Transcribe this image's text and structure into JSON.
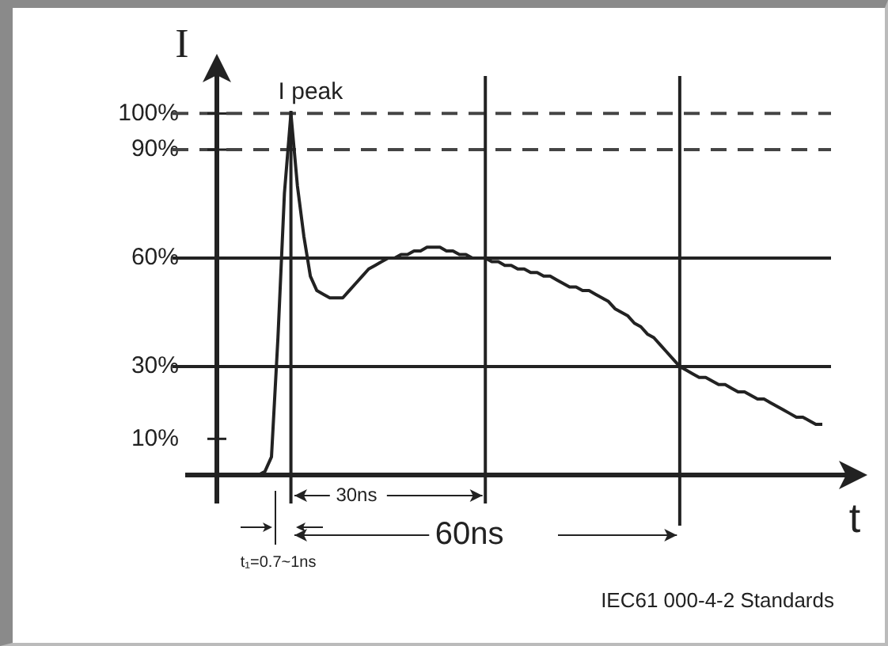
{
  "chart_data": {
    "type": "line",
    "xlabel": "t",
    "ylabel": "I",
    "categories": [
      null,
      null,
      null,
      null,
      null,
      null,
      null,
      null,
      null,
      null,
      null,
      null,
      null,
      null,
      null,
      null,
      null,
      null,
      null,
      null,
      null,
      null,
      null,
      null,
      null,
      null,
      null,
      null,
      null,
      null,
      null,
      null,
      null,
      null,
      null,
      null,
      null,
      null,
      null,
      null,
      null,
      null,
      null,
      null,
      null,
      null,
      null,
      null,
      null,
      null,
      null,
      null,
      null,
      null,
      null,
      null,
      null,
      null,
      null,
      null,
      null,
      null,
      null,
      null,
      null,
      null,
      null,
      null,
      null,
      null,
      null,
      null,
      null,
      null,
      null,
      null,
      null,
      null,
      null,
      null,
      null,
      null,
      null,
      null,
      null,
      null,
      null,
      null,
      null
    ],
    "series": [
      {
        "color": "#222222",
        "values": [
          0,
          0,
          1,
          5,
          38,
          78,
          100,
          80,
          66,
          55,
          51,
          50,
          49,
          49,
          49,
          51,
          53,
          55,
          57,
          58,
          59,
          60,
          60,
          61,
          61,
          62,
          62,
          63,
          63,
          63,
          62,
          62,
          61,
          61,
          60,
          60,
          60,
          59,
          59,
          58,
          58,
          57,
          57,
          56,
          56,
          55,
          55,
          54,
          53,
          52,
          52,
          51,
          51,
          50,
          49,
          48,
          46,
          45,
          44,
          42,
          41,
          39,
          38,
          36,
          34,
          32,
          30,
          29,
          28,
          27,
          27,
          26,
          25,
          25,
          24,
          23,
          23,
          22,
          21,
          21,
          20,
          19,
          18,
          17,
          16,
          16,
          15,
          14,
          14
        ]
      }
    ],
    "ylim": [
      0,
      113
    ],
    "yticks": [
      {
        "value": 10,
        "label": "10%"
      },
      {
        "value": 30,
        "label": "30%"
      },
      {
        "value": 60,
        "label": "60%"
      },
      {
        "value": 90,
        "label": "90%"
      },
      {
        "value": 100,
        "label": "100%"
      }
    ],
    "tick_labels": "y",
    "grid": "x",
    "legend": false,
    "marker": "none",
    "line_style": "solid",
    "ref_lines": [
      {
        "axis": "y",
        "value": 100,
        "line_style": "dashed",
        "color": "#444444"
      },
      {
        "axis": "y",
        "value": 90,
        "line_style": "dashed",
        "color": "#444444"
      },
      {
        "axis": "y",
        "value": 60,
        "line_style": "solid",
        "color": "#222222"
      },
      {
        "axis": "y",
        "value": 30,
        "line_style": "solid",
        "color": "#222222"
      }
    ],
    "annotations": [
      {
        "text": "I peak",
        "y": 100
      },
      "30ns",
      "60ns",
      "t₁=0.7~1ns",
      "IEC61 000-4-2 Standards"
    ]
  }
}
